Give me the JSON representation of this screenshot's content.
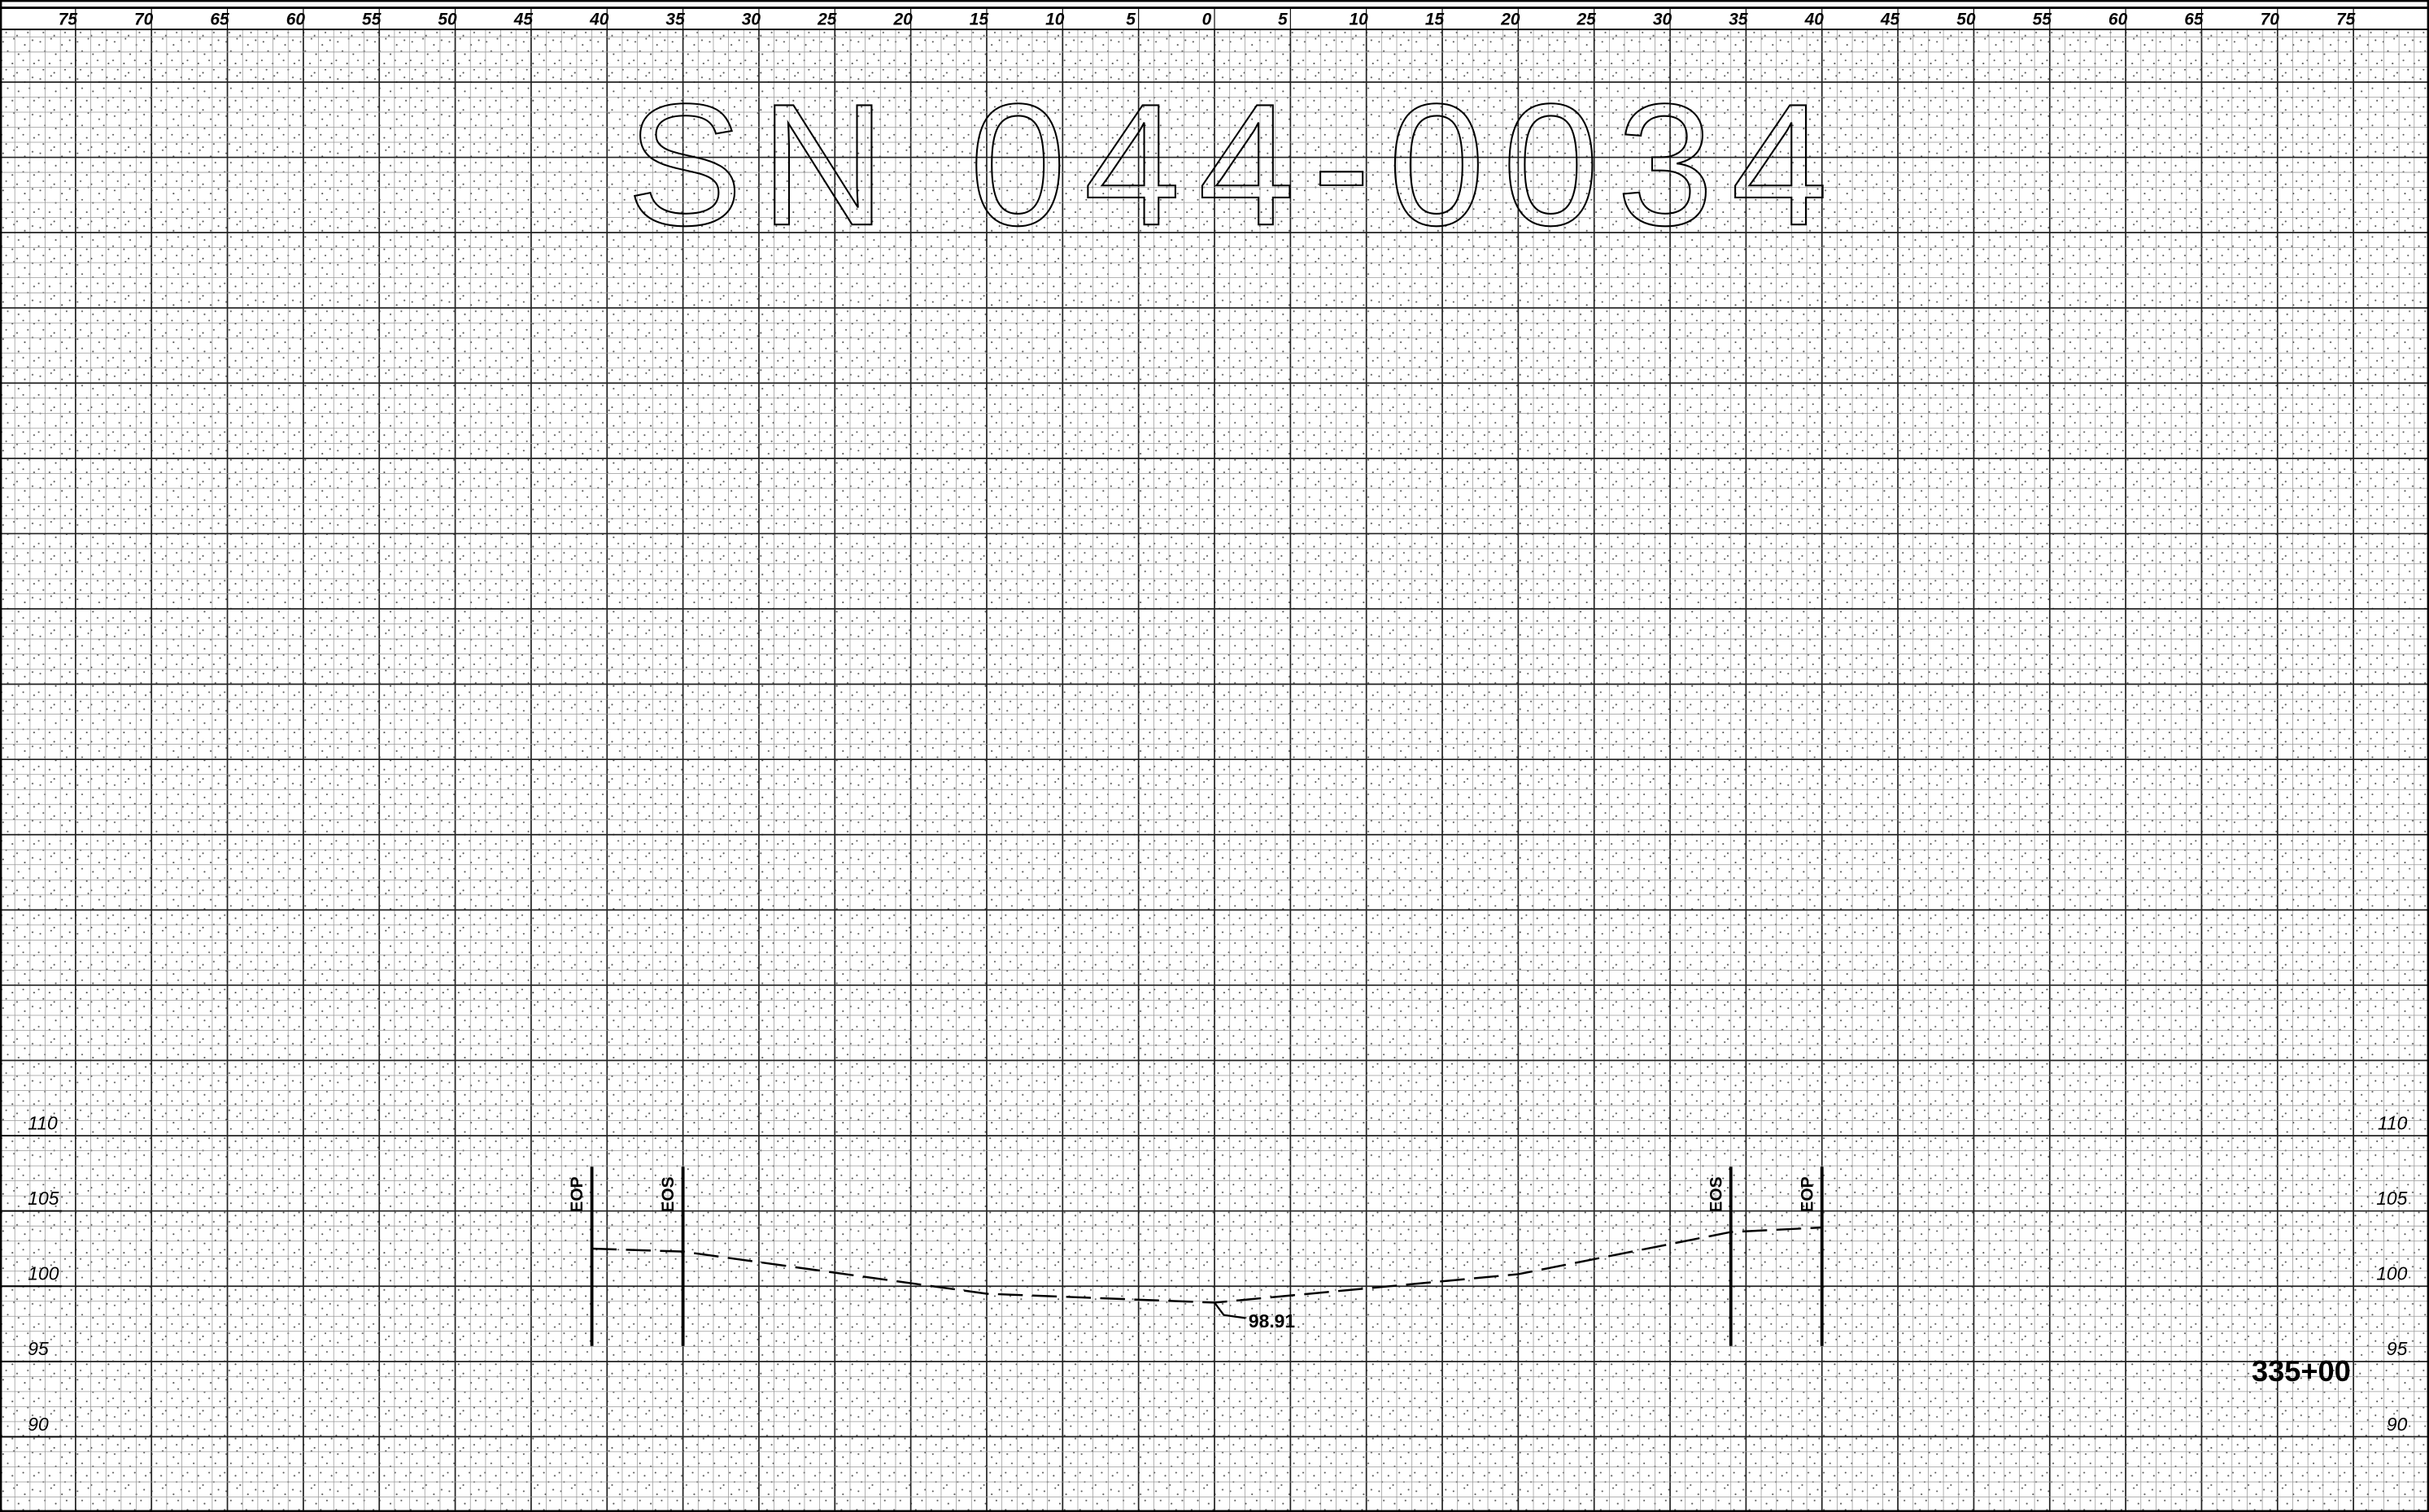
{
  "title": "SN 044-0034",
  "station": "335+00",
  "chart_data": {
    "type": "line",
    "x": [
      -41,
      -35,
      -15,
      0,
      20,
      34,
      40
    ],
    "values": [
      102.5,
      102.3,
      99.5,
      98.91,
      100.8,
      103.6,
      103.9
    ],
    "xlim": [
      -80,
      80
    ],
    "xticks": [
      {
        "value": -75,
        "label": "75"
      },
      {
        "value": -70,
        "label": "70"
      },
      {
        "value": -65,
        "label": "65"
      },
      {
        "value": -60,
        "label": "60"
      },
      {
        "value": -55,
        "label": "55"
      },
      {
        "value": -50,
        "label": "50"
      },
      {
        "value": -45,
        "label": "45"
      },
      {
        "value": -40,
        "label": "40"
      },
      {
        "value": -35,
        "label": "35"
      },
      {
        "value": -30,
        "label": "30"
      },
      {
        "value": -25,
        "label": "25"
      },
      {
        "value": -20,
        "label": "20"
      },
      {
        "value": -15,
        "label": "15"
      },
      {
        "value": -10,
        "label": "10"
      },
      {
        "value": -5,
        "label": "5"
      },
      0,
      5,
      10,
      15,
      20,
      25,
      30,
      35,
      40,
      45,
      50,
      55,
      60,
      65,
      70,
      75
    ],
    "ylim": [
      85,
      185
    ],
    "yticks": [
      90,
      95,
      100,
      105,
      110
    ],
    "markers": [
      {
        "label": "EOP",
        "x": -41
      },
      {
        "label": "EOS",
        "x": -35
      },
      {
        "label": "EOS",
        "x": 34
      },
      {
        "label": "EOP",
        "x": 40
      }
    ],
    "color": "#000000"
  }
}
